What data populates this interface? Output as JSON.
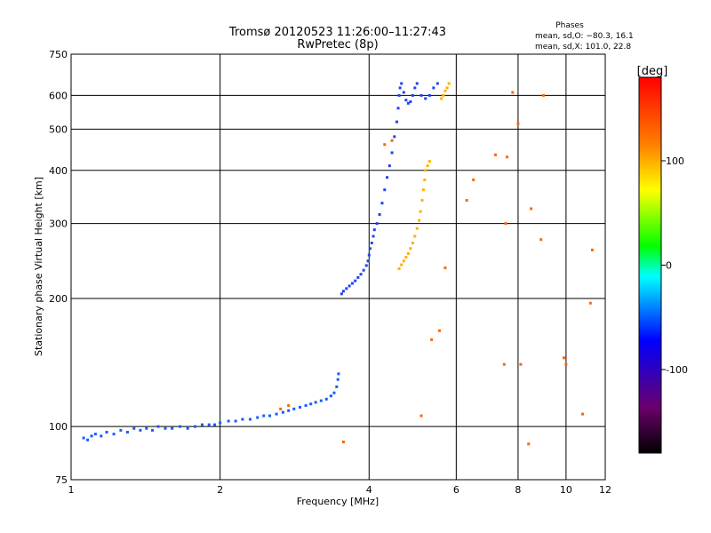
{
  "chart_data": {
    "type": "scatter",
    "title": "Tromsø 20120523 11:26:00–11:27:43",
    "subtitle": "RwPretec (8p)",
    "xlabel": "Frequency [MHz]",
    "ylabel": "Stationary phase Virtual Height [km]",
    "x_scale": "log",
    "y_scale": "log",
    "xlim": [
      1,
      12
    ],
    "ylim": [
      75,
      750
    ],
    "x_ticks": [
      1,
      2,
      4,
      6,
      8,
      10,
      12
    ],
    "y_ticks": [
      75,
      100,
      200,
      300,
      400,
      500,
      600,
      750
    ],
    "grid": true,
    "info": {
      "heading": "Phases",
      "line1": "mean, sd,O: −80.3, 16.1",
      "line2": "mean, sd,X: 101.0, 22.8"
    },
    "colorbar": {
      "label": "[deg]",
      "range": [
        -180,
        180
      ],
      "ticks": [
        100,
        0,
        -100
      ],
      "colors": [
        "#000000",
        "#6a006a",
        "#0000ff",
        "#00ffff",
        "#00ff00",
        "#ffff00",
        "#ff8000",
        "#ff0000"
      ]
    },
    "series": [
      {
        "trace": "low-F-trace",
        "color": "#1a5aff",
        "points": [
          [
            1.06,
            94
          ],
          [
            1.08,
            93
          ],
          [
            1.1,
            95
          ],
          [
            1.12,
            96
          ],
          [
            1.15,
            95
          ],
          [
            1.18,
            97
          ],
          [
            1.22,
            96
          ],
          [
            1.26,
            98
          ],
          [
            1.3,
            97
          ],
          [
            1.34,
            99
          ],
          [
            1.38,
            98
          ],
          [
            1.42,
            99
          ],
          [
            1.46,
            98
          ],
          [
            1.5,
            100
          ],
          [
            1.55,
            99
          ],
          [
            1.6,
            99
          ],
          [
            1.66,
            100
          ],
          [
            1.72,
            99
          ],
          [
            1.78,
            100
          ],
          [
            1.84,
            101
          ],
          [
            1.9,
            101
          ],
          [
            1.95,
            101
          ],
          [
            2.0,
            102
          ],
          [
            2.08,
            103
          ],
          [
            2.15,
            103
          ],
          [
            2.22,
            104
          ],
          [
            2.3,
            104
          ],
          [
            2.38,
            105
          ],
          [
            2.45,
            106
          ],
          [
            2.52,
            106
          ],
          [
            2.6,
            107
          ],
          [
            2.68,
            108
          ],
          [
            2.75,
            109
          ],
          [
            2.82,
            110
          ],
          [
            2.9,
            111
          ],
          [
            2.98,
            112
          ],
          [
            3.05,
            113
          ],
          [
            3.12,
            114
          ],
          [
            3.2,
            115
          ],
          [
            3.28,
            116
          ],
          [
            3.35,
            118
          ],
          [
            3.4,
            120
          ],
          [
            3.44,
            124
          ],
          [
            3.46,
            129
          ],
          [
            3.47,
            133
          ]
        ]
      },
      {
        "trace": "F-trace-O",
        "color": "#2244ee",
        "points": [
          [
            3.52,
            205
          ],
          [
            3.55,
            208
          ],
          [
            3.6,
            211
          ],
          [
            3.65,
            214
          ],
          [
            3.7,
            217
          ],
          [
            3.75,
            220
          ],
          [
            3.8,
            224
          ],
          [
            3.85,
            228
          ],
          [
            3.9,
            233
          ],
          [
            3.95,
            239
          ],
          [
            3.98,
            245
          ],
          [
            4.0,
            253
          ],
          [
            4.02,
            262
          ],
          [
            4.05,
            270
          ],
          [
            4.08,
            280
          ],
          [
            4.1,
            290
          ],
          [
            4.15,
            300
          ],
          [
            4.2,
            315
          ],
          [
            4.25,
            335
          ],
          [
            4.3,
            360
          ],
          [
            4.35,
            385
          ],
          [
            4.4,
            410
          ],
          [
            4.45,
            440
          ],
          [
            4.5,
            480
          ],
          [
            4.55,
            520
          ],
          [
            4.58,
            560
          ],
          [
            4.6,
            600
          ],
          [
            4.62,
            625
          ],
          [
            4.65,
            640
          ],
          [
            4.7,
            610
          ],
          [
            4.75,
            585
          ],
          [
            4.8,
            575
          ],
          [
            4.85,
            580
          ],
          [
            4.9,
            600
          ],
          [
            4.95,
            625
          ],
          [
            5.0,
            640
          ],
          [
            5.1,
            600
          ],
          [
            5.2,
            590
          ],
          [
            5.3,
            600
          ],
          [
            5.4,
            625
          ],
          [
            5.5,
            640
          ]
        ]
      },
      {
        "trace": "F-trace-X",
        "color": "#ffb000",
        "points": [
          [
            4.6,
            235
          ],
          [
            4.65,
            240
          ],
          [
            4.7,
            245
          ],
          [
            4.75,
            250
          ],
          [
            4.8,
            255
          ],
          [
            4.85,
            262
          ],
          [
            4.9,
            270
          ],
          [
            4.95,
            280
          ],
          [
            5.0,
            292
          ],
          [
            5.05,
            305
          ],
          [
            5.08,
            320
          ],
          [
            5.12,
            340
          ],
          [
            5.15,
            360
          ],
          [
            5.18,
            380
          ],
          [
            5.2,
            400
          ],
          [
            5.25,
            410
          ],
          [
            5.3,
            420
          ],
          [
            5.6,
            590
          ],
          [
            5.65,
            600
          ],
          [
            5.7,
            615
          ],
          [
            5.75,
            625
          ],
          [
            5.8,
            640
          ]
        ]
      },
      {
        "trace": "scattered-echoes",
        "color": "#ff6600",
        "points": [
          [
            2.65,
            110
          ],
          [
            2.75,
            112
          ],
          [
            3.55,
            92
          ],
          [
            4.3,
            460
          ],
          [
            4.45,
            470
          ],
          [
            5.1,
            106
          ],
          [
            5.35,
            160
          ],
          [
            5.55,
            168
          ],
          [
            5.7,
            236
          ],
          [
            6.3,
            340
          ],
          [
            6.5,
            380
          ],
          [
            7.2,
            435
          ],
          [
            7.5,
            140
          ],
          [
            7.55,
            300
          ],
          [
            7.6,
            430
          ],
          [
            7.8,
            610
          ],
          [
            8.0,
            515
          ],
          [
            8.1,
            140
          ],
          [
            8.4,
            91
          ],
          [
            8.5,
            325
          ],
          [
            8.9,
            275
          ],
          [
            9.0,
            600
          ],
          [
            9.9,
            145
          ],
          [
            10.0,
            140
          ],
          [
            10.8,
            107
          ],
          [
            11.2,
            195
          ],
          [
            11.3,
            260
          ]
        ]
      }
    ]
  }
}
